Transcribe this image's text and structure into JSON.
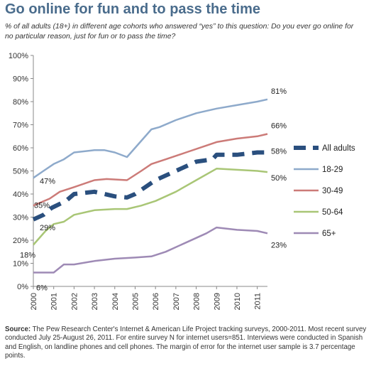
{
  "title": "Go online for fun and to pass the time",
  "subtitle": "% of all adults (18+) in different age cohorts who answered “yes” to this question: Do you ever go online for no particular reason, just for fun or to pass the time?",
  "source_label": "Source:",
  "source_text": "The Pew Research Center's Internet & American Life Project tracking surveys, 2000-2011. Most recent survey conducted July 25-August 26, 2011. For entire survey N for internet users=851. Interviews were conducted in Spanish and English, on landline phones and cell phones. The margin of error for the internet user sample is 3.7 percentage points.",
  "chart_data": {
    "type": "line",
    "title": "Go online for fun and to pass the time",
    "x_ticks": [
      "2000",
      "2001",
      "2002",
      "2003",
      "2004",
      "2005",
      "2006",
      "2007",
      "2008",
      "2009",
      "2010",
      "2011"
    ],
    "y_ticks": [
      "0%",
      "10%",
      "20%",
      "30%",
      "40%",
      "50%",
      "60%",
      "70%",
      "80%",
      "90%",
      "100%"
    ],
    "ylim": [
      0,
      100
    ],
    "xlim": [
      2000,
      2011.5
    ],
    "grid": false,
    "legend_position": "right",
    "series": [
      {
        "name": "All adults",
        "color": "#2a4f7e",
        "style": "dashed",
        "x": [
          2000,
          2000.5,
          2000.9,
          2001.6,
          2002.0,
          2003.0,
          2003.5,
          2004.0,
          2004.6,
          2005.0,
          2005.5,
          2006.0,
          2007.0,
          2008.0,
          2008.8,
          2009.0,
          2010.0,
          2011.0,
          2011.5
        ],
        "y": [
          29,
          31,
          34,
          37,
          40,
          41,
          40,
          39,
          38.5,
          40,
          43,
          46,
          50,
          54,
          55,
          57,
          57,
          58,
          58
        ]
      },
      {
        "name": "18-29",
        "color": "#8eaacb",
        "x": [
          2000,
          2000.5,
          2001.0,
          2001.5,
          2002.0,
          2003.0,
          2003.5,
          2004.0,
          2004.6,
          2005.2,
          2005.8,
          2006.2,
          2007.0,
          2008.0,
          2009.0,
          2010.0,
          2011.0,
          2011.5
        ],
        "y": [
          47,
          50,
          53,
          55,
          58,
          59,
          59,
          58,
          56,
          62,
          68,
          69,
          72,
          75,
          77,
          78.5,
          80,
          81
        ]
      },
      {
        "name": "30-49",
        "color": "#cc7b78",
        "x": [
          2000,
          2000.8,
          2001.3,
          2002.0,
          2003.0,
          2003.6,
          2004.6,
          2005.3,
          2005.8,
          2006.5,
          2007.5,
          2008.5,
          2009.0,
          2010.0,
          2011.0,
          2011.5
        ],
        "y": [
          35,
          38,
          41,
          43,
          46,
          46.5,
          46,
          50,
          53,
          55,
          58,
          61,
          62.5,
          64,
          65,
          66
        ]
      },
      {
        "name": "50-64",
        "color": "#a9c676",
        "x": [
          2000,
          2000.6,
          2001.0,
          2001.5,
          2002.0,
          2003.0,
          2004.0,
          2004.6,
          2005.3,
          2006.0,
          2007.0,
          2008.0,
          2009.0,
          2010.0,
          2011.0,
          2011.5
        ],
        "y": [
          18,
          24,
          27,
          28,
          31,
          33,
          33.5,
          33.5,
          35,
          37,
          41,
          46,
          51,
          50.5,
          50,
          49.5
        ]
      },
      {
        "name": "65+",
        "color": "#9e8ab5",
        "x": [
          2000,
          2000.5,
          2001.0,
          2001.5,
          2002.0,
          2003.0,
          2004.0,
          2005.0,
          2005.8,
          2006.5,
          2007.5,
          2008.5,
          2009.0,
          2010.0,
          2011.0,
          2011.5
        ],
        "y": [
          6,
          6,
          6,
          9.5,
          9.5,
          11,
          12,
          12.5,
          13,
          15,
          19,
          23,
          25.5,
          24.5,
          24,
          23
        ]
      }
    ],
    "data_labels": [
      {
        "text": "81%",
        "series": "18-29",
        "side": "end"
      },
      {
        "text": "66%",
        "series": "30-49",
        "side": "end"
      },
      {
        "text": "58%",
        "series": "All adults",
        "side": "end"
      },
      {
        "text": "50%",
        "series": "50-64",
        "side": "end"
      },
      {
        "text": "23%",
        "series": "65+",
        "side": "end"
      },
      {
        "text": "47%",
        "series": "18-29",
        "side": "start"
      },
      {
        "text": "35%",
        "series": "30-49",
        "side": "start"
      },
      {
        "text": "29%",
        "series": "All adults",
        "side": "start"
      },
      {
        "text": "18%",
        "series": "50-64",
        "side": "start"
      },
      {
        "text": "6%",
        "series": "65+",
        "side": "start"
      }
    ]
  }
}
